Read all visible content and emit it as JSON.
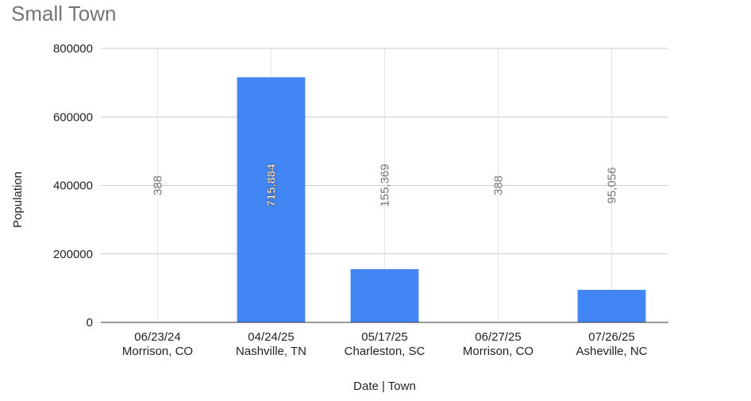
{
  "chart_data": {
    "type": "bar",
    "title": "Small Town",
    "xlabel": "Date | Town",
    "ylabel": "Population",
    "ylim": [
      0,
      800000
    ],
    "yticks": [
      0,
      200000,
      400000,
      600000,
      800000
    ],
    "ytick_labels": [
      "0",
      "200000",
      "400000",
      "600000",
      "800000"
    ],
    "categories": [
      {
        "date": "06/23/24",
        "town": "Morrison, CO"
      },
      {
        "date": "04/24/25",
        "town": "Nashville, TN"
      },
      {
        "date": "05/17/25",
        "town": "Charleston, SC"
      },
      {
        "date": "06/27/25",
        "town": "Morrison, CO"
      },
      {
        "date": "07/26/25",
        "town": "Asheville, NC"
      }
    ],
    "values": [
      388,
      715884,
      155369,
      388,
      95056
    ],
    "data_labels": [
      "388",
      "715,884",
      "155,369",
      "388",
      "95,056"
    ],
    "bar_color": "#4285f4",
    "grid": true
  }
}
